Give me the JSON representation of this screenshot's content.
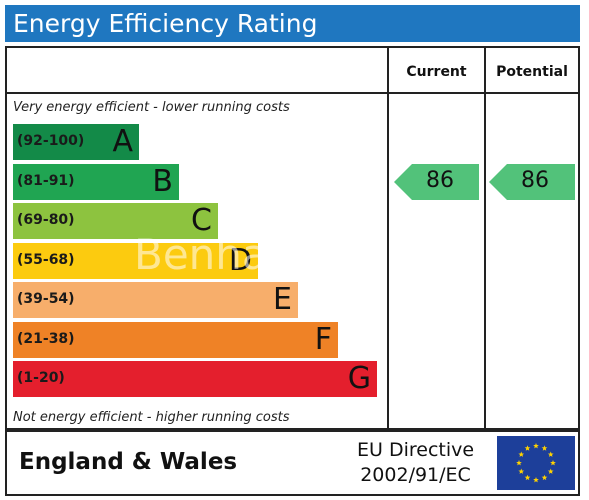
{
  "title": "Energy Efficiency Rating",
  "columns": {
    "current": "Current",
    "potential": "Potential"
  },
  "notes": {
    "top": "Very energy efficient - lower running costs",
    "bottom": "Not energy efficient - higher running costs"
  },
  "chart_data": {
    "type": "bar",
    "title": "Energy Efficiency Rating",
    "bands": [
      {
        "range": "(92-100)",
        "letter": "A",
        "min": 92,
        "max": 100,
        "color": "#138a48"
      },
      {
        "range": "(81-91)",
        "letter": "B",
        "min": 81,
        "max": 91,
        "color": "#20a552"
      },
      {
        "range": "(69-80)",
        "letter": "C",
        "min": 69,
        "max": 80,
        "color": "#8dc33f"
      },
      {
        "range": "(55-68)",
        "letter": "D",
        "min": 55,
        "max": 68,
        "color": "#fccb0f"
      },
      {
        "range": "(39-54)",
        "letter": "E",
        "min": 39,
        "max": 54,
        "color": "#f7ae6b"
      },
      {
        "range": "(21-38)",
        "letter": "F",
        "min": 21,
        "max": 38,
        "color": "#ef8226"
      },
      {
        "range": "(1-20)",
        "letter": "G",
        "min": 1,
        "max": 20,
        "color": "#e41f2d"
      }
    ],
    "current": {
      "value": 86,
      "band": "B",
      "color": "#52c27a"
    },
    "potential": {
      "value": 86,
      "band": "B",
      "color": "#52c27a"
    }
  },
  "footer": {
    "region": "England & Wales",
    "directive_line1": "EU Directive",
    "directive_line2": "2002/91/EC",
    "flag_color": "#1d3f9a",
    "star_color": "#ffd200"
  },
  "watermark": "Benham"
}
